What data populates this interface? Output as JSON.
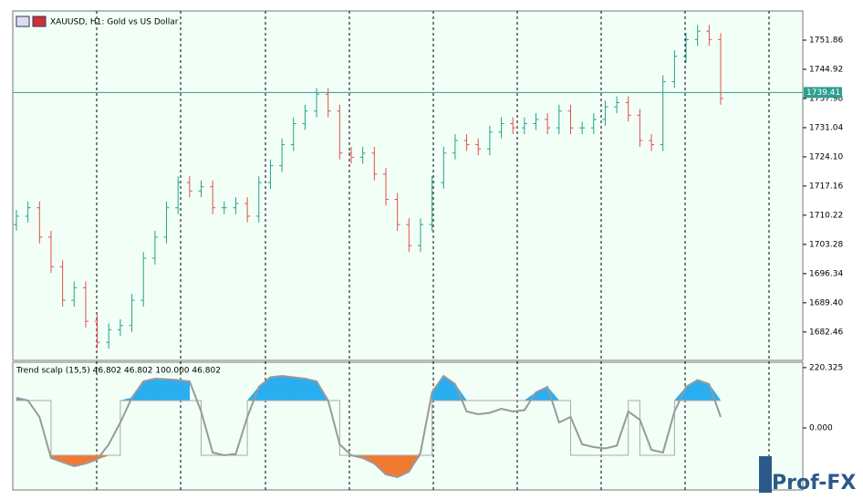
{
  "chart_data": [
    {
      "type": "ohlc",
      "title": "XAUUSD, H1:  Gold vs US Dollar",
      "up_color": "#26a08c",
      "down_color": "#e0504a",
      "open": [
        1708,
        1710,
        1712,
        1705,
        1698,
        1690,
        1693,
        1685,
        1680,
        1683,
        1684,
        1690,
        1700,
        1705,
        1712,
        1718,
        1716,
        1717,
        1712,
        1712,
        1713,
        1710,
        1718,
        1722,
        1727,
        1732,
        1735,
        1739,
        1735,
        1725,
        1724,
        1725,
        1720,
        1714,
        1708,
        1703,
        1708,
        1718,
        1725,
        1728,
        1727,
        1726,
        1730,
        1732,
        1731,
        1732,
        1733,
        1731,
        1735,
        1731,
        1731,
        1733,
        1736,
        1737,
        1734,
        1728,
        1727,
        1742,
        1748,
        1752,
        1754,
        1752
      ],
      "high": [
        1711.5,
        1713.5,
        1713.5,
        1706.5,
        1699.5,
        1694.5,
        1694.5,
        1686.5,
        1684.5,
        1685.5,
        1691.5,
        1701.5,
        1706.5,
        1713.5,
        1719.5,
        1719.5,
        1718.5,
        1718.5,
        1713.5,
        1714.5,
        1714.5,
        1719.5,
        1723.5,
        1728.5,
        1733.5,
        1736.5,
        1740.5,
        1740.5,
        1736.5,
        1726.5,
        1726.5,
        1726.5,
        1721.5,
        1715.5,
        1709.5,
        1709.5,
        1719.5,
        1726.5,
        1729.5,
        1729.5,
        1728.5,
        1731.5,
        1733.5,
        1733.5,
        1733.5,
        1734.5,
        1734.5,
        1736.5,
        1736.5,
        1732.5,
        1734.5,
        1737.5,
        1738.5,
        1738.5,
        1735.5,
        1729.5,
        1743.5,
        1749.5,
        1753.5,
        1755.5,
        1755.5,
        1753.5
      ],
      "low": [
        1706.5,
        1708.5,
        1703.5,
        1696.5,
        1688.5,
        1688.5,
        1683.5,
        1678.5,
        1678.5,
        1681.5,
        1682.5,
        1688.5,
        1698.5,
        1703.5,
        1710.5,
        1714.5,
        1714.5,
        1710.5,
        1710.5,
        1710.5,
        1708.5,
        1708.5,
        1716.5,
        1720.5,
        1725.5,
        1730.5,
        1733.5,
        1733.5,
        1723.5,
        1722.5,
        1722.5,
        1718.5,
        1712.5,
        1706.5,
        1701.5,
        1701.5,
        1706.5,
        1716.5,
        1723.5,
        1725.5,
        1724.5,
        1724.5,
        1728.5,
        1729.5,
        1729.5,
        1730.5,
        1729.5,
        1729.5,
        1729.5,
        1729.5,
        1729.5,
        1731.5,
        1734.5,
        1732.5,
        1726.5,
        1725.5,
        1725.5,
        1740.5,
        1746.5,
        1750.5,
        1750.5,
        1736.5
      ],
      "close": [
        1710,
        1712,
        1705,
        1698,
        1690,
        1693,
        1685,
        1680,
        1683,
        1684,
        1690,
        1700,
        1705,
        1712,
        1718,
        1716,
        1717,
        1712,
        1712,
        1713,
        1710,
        1718,
        1722,
        1727,
        1732,
        1735,
        1739,
        1735,
        1725,
        1724,
        1725,
        1720,
        1714,
        1708,
        1703,
        1708,
        1718,
        1725,
        1728,
        1727,
        1726,
        1730,
        1732,
        1731,
        1732,
        1733,
        1731,
        1735,
        1731,
        1731,
        1733,
        1736,
        1737,
        1734,
        1728,
        1727,
        1742,
        1748,
        1752,
        1754,
        1752,
        1738
      ],
      "current_price": 1739.41,
      "ylim": [
        1675.7,
        1758.8
      ],
      "yticks": [
        1751.86,
        1744.92,
        1737.98,
        1731.04,
        {
          "value": 1724.1,
          "label": "1724.10"
        },
        1717.16,
        1710.22,
        1703.28,
        1696.34,
        {
          "value": 1689.4,
          "label": "1689.40"
        },
        1682.46
      ]
    },
    {
      "type": "indicator",
      "title": "Trend scalp (15,5) 46.802 46.802 100.000 46.802",
      "series": [
        {
          "name": "value",
          "color": "#999999",
          "values": [
            110,
            100,
            40,
            -110,
            -125,
            -140,
            -130,
            -115,
            -60,
            20,
            110,
            170,
            180,
            178,
            175,
            170,
            60,
            -90,
            -100,
            -95,
            40,
            150,
            185,
            190,
            185,
            180,
            170,
            100,
            -60,
            -100,
            -110,
            -130,
            -170,
            -180,
            -160,
            -90,
            130,
            190,
            160,
            60,
            50,
            55,
            70,
            60,
            65,
            130,
            150,
            20,
            40,
            -60,
            -70,
            -75,
            -65,
            60,
            30,
            -80,
            -90,
            60,
            150,
            175,
            160,
            40
          ]
        },
        {
          "name": "signal",
          "color": "#aaaaaa",
          "values": [
            100,
            100,
            100,
            -100,
            -100,
            -100,
            -100,
            -100,
            -100,
            100,
            100,
            100,
            100,
            100,
            100,
            100,
            -100,
            -100,
            -100,
            -100,
            100,
            100,
            100,
            100,
            100,
            100,
            100,
            100,
            -100,
            -100,
            -100,
            -100,
            -100,
            -100,
            -100,
            -100,
            100,
            100,
            100,
            100,
            100,
            100,
            100,
            100,
            100,
            100,
            100,
            100,
            -100,
            -100,
            -100,
            -100,
            -100,
            100,
            -100,
            -100,
            -100,
            100,
            100,
            100,
            100,
            100
          ]
        }
      ],
      "up_fill": "#29aef0",
      "down_fill": "#f07a30",
      "ylim": [
        -220,
        240
      ],
      "yticks": [
        220.325,
        {
          "value": 0,
          "label": "0.000"
        }
      ]
    }
  ],
  "logo": "Prof-FX"
}
